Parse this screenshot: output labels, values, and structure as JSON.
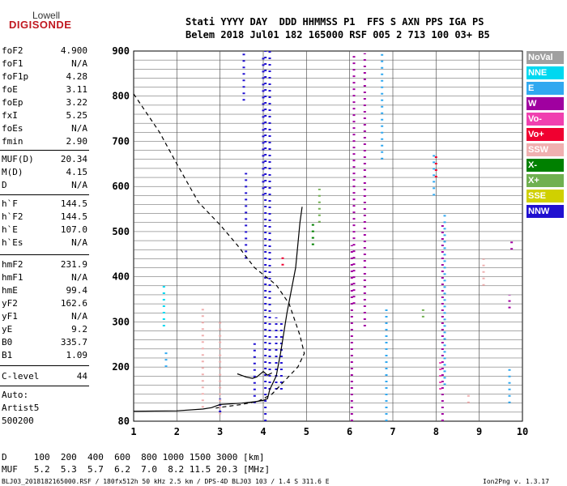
{
  "logo": {
    "brand": "Lowell",
    "product": "DIGISONDE"
  },
  "header": {
    "line1": "Stati YYYY DAY  DDD HHMMSS P1  FFS S AXN PPS IGA PS",
    "line2": "Belem 2018 Jul01 182 165000 RSF 005 2 713 100 03+ B5"
  },
  "params_group1": [
    {
      "label": "foF2",
      "value": "4.900"
    },
    {
      "label": "foF1",
      "value": "N/A"
    },
    {
      "label": "foF1p",
      "value": "4.28"
    },
    {
      "label": "foE",
      "value": "3.11"
    },
    {
      "label": "foEp",
      "value": "3.22"
    },
    {
      "label": "fxI",
      "value": "5.25"
    },
    {
      "label": "foEs",
      "value": "N/A"
    },
    {
      "label": "fmin",
      "value": "2.90"
    }
  ],
  "params_group2": [
    {
      "label": "MUF(D)",
      "value": "20.34"
    },
    {
      "label": "M(D)",
      "value": "4.15"
    },
    {
      "label": "D",
      "value": "N/A"
    }
  ],
  "params_group3": [
    {
      "label": "h`F",
      "value": "144.5"
    },
    {
      "label": "h`F2",
      "value": "144.5"
    },
    {
      "label": "h`E",
      "value": "107.0"
    },
    {
      "label": "h`Es",
      "value": "N/A"
    }
  ],
  "params_group4": [
    {
      "label": "hmF2",
      "value": "231.9"
    },
    {
      "label": "hmF1",
      "value": "N/A"
    },
    {
      "label": "hmE",
      "value": "99.4"
    },
    {
      "label": "yF2",
      "value": "162.6"
    },
    {
      "label": "yF1",
      "value": "N/A"
    },
    {
      "label": "yE",
      "value": "9.2"
    },
    {
      "label": "B0",
      "value": "335.7"
    },
    {
      "label": "B1",
      "value": "1.09"
    }
  ],
  "clevel": {
    "label": "C-level",
    "value": "44"
  },
  "autoscaling": {
    "line1": "Auto:",
    "line2": "Artist5",
    "line3": "500200"
  },
  "legend": [
    {
      "label": "NoVal",
      "color": "#a0a0a0"
    },
    {
      "label": "NNE",
      "color": "#00d8f0"
    },
    {
      "label": "E",
      "color": "#30a8f0"
    },
    {
      "label": "W",
      "color": "#a000a0"
    },
    {
      "label": "Vo-",
      "color": "#f040b0"
    },
    {
      "label": "Vo+",
      "color": "#f00030"
    },
    {
      "label": "SSW",
      "color": "#f0b0b0"
    },
    {
      "label": "X-",
      "color": "#008000"
    },
    {
      "label": "X+",
      "color": "#70b050"
    },
    {
      "label": "SSE",
      "color": "#d0d000"
    },
    {
      "label": "NNW",
      "color": "#2010d0"
    }
  ],
  "muf_table": {
    "d_row": "D     100  200  400  600  800 1000 1500 3000 [km]",
    "muf_row": "MUF   5.2  5.3  5.7  6.2  7.0  8.2 11.5 20.3 [MHz]"
  },
  "footer": {
    "left": "BLJ03_2018182165000.RSF / 180fx512h 50 kHz 2.5 km / DPS-4D BLJ03 103 / 1.4 S 311.6 E",
    "right": "Ion2Png v. 1.3.17"
  },
  "chart_data": {
    "type": "scatter",
    "xlim": [
      1,
      10
    ],
    "ylim": [
      80,
      900
    ],
    "x_ticks": [
      "1",
      "2",
      "3",
      "4",
      "5",
      "6",
      "7",
      "8",
      "9",
      "10"
    ],
    "y_ticks": [
      "80",
      "200",
      "300",
      "400",
      "500",
      "600",
      "700",
      "800",
      "900"
    ],
    "y_tick_values": [
      80,
      200,
      300,
      400,
      500,
      600,
      700,
      800,
      900
    ],
    "grid": true,
    "series": [
      {
        "values": [
          [
            1.0,
            102
          ],
          [
            2.0,
            103
          ],
          [
            2.6,
            107
          ],
          [
            2.8,
            110
          ],
          [
            3.0,
            117
          ],
          [
            3.5,
            120
          ],
          [
            3.8,
            123
          ],
          [
            4.0,
            126
          ],
          [
            4.1,
            130
          ],
          [
            4.15,
            150
          ],
          [
            4.2,
            160
          ],
          [
            4.3,
            180
          ],
          [
            4.4,
            230
          ],
          [
            4.55,
            320
          ],
          [
            4.75,
            420
          ],
          [
            4.85,
            520
          ],
          [
            4.9,
            555
          ]
        ]
      },
      {
        "values": [
          [
            3.4,
            185
          ],
          [
            3.6,
            178
          ],
          [
            3.75,
            175
          ],
          [
            3.85,
            178
          ],
          [
            4.0,
            190
          ],
          [
            4.1,
            182
          ],
          [
            4.2,
            187
          ]
        ]
      },
      {
        "values": [
          [
            1.0,
            805
          ],
          [
            1.6,
            720
          ],
          [
            2.0,
            650
          ],
          [
            2.5,
            565
          ],
          [
            3.0,
            515
          ],
          [
            3.4,
            470
          ],
          [
            3.8,
            420
          ],
          [
            4.3,
            382
          ],
          [
            4.6,
            340
          ],
          [
            4.85,
            270
          ],
          [
            4.95,
            230
          ],
          [
            4.8,
            200
          ],
          [
            4.45,
            165
          ],
          [
            4.2,
            140
          ],
          [
            3.9,
            125
          ],
          [
            3.5,
            117
          ],
          [
            3.1,
            112
          ],
          [
            2.9,
            109
          ]
        ]
      }
    ],
    "echo_traces": [
      {
        "color": "#2010d0",
        "x": 3.55,
        "y_from": 790,
        "y_to": 895
      },
      {
        "color": "#2010d0",
        "x": 3.6,
        "y_from": 440,
        "y_to": 630
      },
      {
        "color": "#2010d0",
        "x": 4.0,
        "y_from": 580,
        "y_to": 890
      },
      {
        "color": "#2010d0",
        "x": 4.05,
        "y_from": 80,
        "y_to": 900
      },
      {
        "color": "#2010d0",
        "x": 4.15,
        "y_from": 150,
        "y_to": 900
      },
      {
        "color": "#2010d0",
        "x": 4.3,
        "y_from": 150,
        "y_to": 310
      },
      {
        "color": "#2010d0",
        "x": 4.42,
        "y_from": 150,
        "y_to": 300
      },
      {
        "color": "#a000a0",
        "x": 6.05,
        "y_from": 80,
        "y_to": 470
      },
      {
        "color": "#a000a0",
        "x": 6.1,
        "y_from": 340,
        "y_to": 895
      },
      {
        "color": "#a000a0",
        "x": 6.35,
        "y_from": 290,
        "y_to": 895
      },
      {
        "color": "#a000a0",
        "x": 8.15,
        "y_from": 80,
        "y_to": 520
      },
      {
        "color": "#f040b0",
        "x": 8.1,
        "y_from": 150,
        "y_to": 220
      },
      {
        "color": "#30a8f0",
        "x": 8.2,
        "y_from": 160,
        "y_to": 540
      },
      {
        "color": "#f0b0b0",
        "x": 2.6,
        "y_from": 110,
        "y_to": 340
      },
      {
        "color": "#f0b0b0",
        "x": 3.0,
        "y_from": 95,
        "y_to": 300
      },
      {
        "color": "#30a8f0",
        "x": 6.75,
        "y_from": 660,
        "y_to": 895
      },
      {
        "color": "#30a8f0",
        "x": 6.85,
        "y_from": 80,
        "y_to": 330
      },
      {
        "color": "#2010d0",
        "x": 3.0,
        "y_from": 100,
        "y_to": 130
      },
      {
        "color": "#70b050",
        "x": 5.3,
        "y_from": 520,
        "y_to": 595
      },
      {
        "color": "#008000",
        "x": 5.15,
        "y_from": 470,
        "y_to": 520
      },
      {
        "color": "#f00030",
        "x": 4.45,
        "y_from": 425,
        "y_to": 445
      },
      {
        "color": "#f00030",
        "x": 8.0,
        "y_from": 620,
        "y_to": 675
      },
      {
        "color": "#30a8f0",
        "x": 7.95,
        "y_from": 580,
        "y_to": 680
      },
      {
        "color": "#a000a0",
        "x": 9.75,
        "y_from": 460,
        "y_to": 480
      },
      {
        "color": "#a000a0",
        "x": 9.7,
        "y_from": 330,
        "y_to": 360
      },
      {
        "color": "#30a8f0",
        "x": 9.7,
        "y_from": 120,
        "y_to": 200
      },
      {
        "color": "#00d8f0",
        "x": 1.7,
        "y_from": 290,
        "y_to": 380
      },
      {
        "color": "#30a8f0",
        "x": 1.75,
        "y_from": 200,
        "y_to": 240
      },
      {
        "color": "#f0b0b0",
        "x": 8.75,
        "y_from": 120,
        "y_to": 140
      },
      {
        "color": "#f0b0b0",
        "x": 9.1,
        "y_from": 380,
        "y_to": 440
      },
      {
        "color": "#70b050",
        "x": 7.7,
        "y_from": 310,
        "y_to": 330
      },
      {
        "color": "#2010d0",
        "x": 3.8,
        "y_from": 120,
        "y_to": 260
      }
    ]
  }
}
